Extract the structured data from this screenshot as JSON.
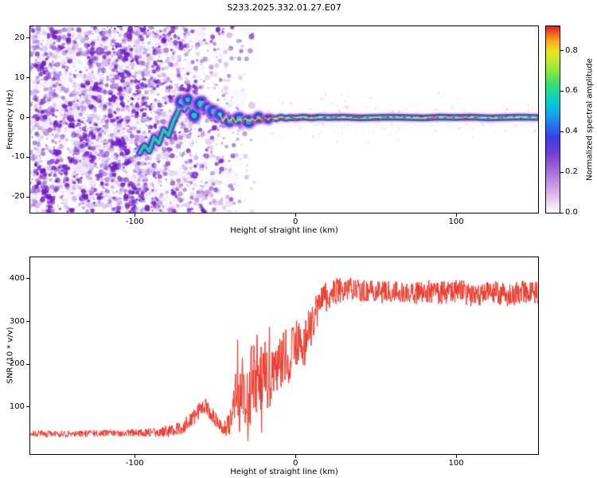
{
  "title": "S233.2025.332.01.27.E07",
  "chart_data": [
    {
      "type": "heatmap",
      "name": "spectrogram",
      "title": "S233.2025.332.01.27.E07",
      "xlabel": "Height of straight line (km)",
      "ylabel": "Frequency (Hz)",
      "xlim": [
        -165,
        151
      ],
      "ylim": [
        -24,
        23
      ],
      "xtick_values": [
        -100,
        0,
        100
      ],
      "xtick_labels": [
        "-100",
        "0",
        "100"
      ],
      "ytick_values": [
        20,
        10,
        0,
        -10,
        -20
      ],
      "ytick_labels": [
        "20",
        "10",
        "0",
        "-10",
        "-20"
      ],
      "colorbar": {
        "label": "Normalized spectral amplitude",
        "tick_values": [
          0,
          0.2,
          0.4,
          0.6,
          0.8
        ],
        "tick_labels": [
          "0.0",
          "0.2",
          "0.4",
          "0.6",
          "0.8"
        ],
        "vmin": 0,
        "vmax": 0.92,
        "stops": [
          [
            0.0,
            "#fdf8fd"
          ],
          [
            0.04,
            "#f3e4f7"
          ],
          [
            0.1,
            "#ddb6ec"
          ],
          [
            0.18,
            "#bd85e0"
          ],
          [
            0.26,
            "#9757d6"
          ],
          [
            0.33,
            "#6b3fd6"
          ],
          [
            0.4,
            "#3c3fe0"
          ],
          [
            0.46,
            "#2b6bec"
          ],
          [
            0.52,
            "#19a0e8"
          ],
          [
            0.58,
            "#06c6d6"
          ],
          [
            0.64,
            "#17d9a8"
          ],
          [
            0.7,
            "#3fe06b"
          ],
          [
            0.76,
            "#8ce83c"
          ],
          [
            0.82,
            "#c9ea28"
          ],
          [
            0.87,
            "#efdf1e"
          ],
          [
            0.92,
            "#f8ac1c"
          ],
          [
            0.96,
            "#f2661f"
          ],
          [
            1.0,
            "#dc1c24"
          ]
        ]
      },
      "noise": {
        "x_range": [
          -165,
          -25
        ],
        "fade_start": -95,
        "count": 3200,
        "seed": 20251
      },
      "signal_track": [
        [
          -97,
          -9
        ],
        [
          -94,
          -7
        ],
        [
          -91,
          -8.5
        ],
        [
          -88,
          -5
        ],
        [
          -85,
          -6.5
        ],
        [
          -82,
          -3
        ],
        [
          -79,
          -4.5
        ],
        [
          -76,
          -1
        ],
        [
          -73,
          1.5
        ],
        [
          -71,
          4
        ],
        [
          -69,
          2
        ],
        [
          -67,
          4.5
        ],
        [
          -65,
          2.5
        ],
        [
          -63,
          0.5
        ],
        [
          -61,
          2
        ],
        [
          -59,
          3.5
        ],
        [
          -57,
          1.5
        ],
        [
          -55,
          2.5
        ],
        [
          -53,
          0.5
        ],
        [
          -51,
          1.5
        ],
        [
          -49,
          -0.5
        ],
        [
          -47,
          0.8
        ],
        [
          -45,
          -0.8
        ],
        [
          -43,
          0.3
        ],
        [
          -41,
          -1
        ],
        [
          -39,
          0
        ],
        [
          -37,
          -1.2
        ],
        [
          -35,
          -0.3
        ],
        [
          -33,
          -1
        ],
        [
          -31,
          -0.2
        ],
        [
          -29,
          -1
        ],
        [
          -27,
          -0.3
        ],
        [
          -25,
          -0.8
        ],
        [
          -23,
          0
        ],
        [
          -21,
          -0.5
        ],
        [
          -19,
          -0.1
        ],
        [
          -17,
          -0.4
        ],
        [
          -15,
          0
        ],
        [
          -12,
          -0.3
        ],
        [
          -9,
          0.1
        ],
        [
          -6,
          -0.2
        ],
        [
          -3,
          0
        ],
        [
          0,
          -0.1
        ],
        [
          5,
          0.1
        ],
        [
          10,
          -0.1
        ],
        [
          15,
          0.1
        ],
        [
          20,
          0
        ],
        [
          30,
          0.1
        ],
        [
          40,
          -0.1
        ],
        [
          50,
          0
        ],
        [
          60,
          0.1
        ],
        [
          70,
          0
        ],
        [
          80,
          -0.1
        ],
        [
          90,
          0.1
        ],
        [
          100,
          0
        ],
        [
          110,
          0.1
        ],
        [
          120,
          -0.1
        ],
        [
          130,
          0
        ],
        [
          140,
          0.1
        ],
        [
          151,
          0
        ]
      ],
      "knots": [
        [
          -71,
          4,
          6
        ],
        [
          -67,
          4.5,
          5
        ],
        [
          -63,
          0.5,
          6
        ],
        [
          -59,
          3.5,
          7
        ],
        [
          -55,
          2.5,
          5
        ],
        [
          -51,
          1.5,
          6
        ],
        [
          -47,
          0.8,
          5
        ],
        [
          -41,
          -1,
          5
        ],
        [
          -35,
          -0.3,
          6
        ],
        [
          -29,
          -1,
          6
        ],
        [
          -23,
          0,
          5
        ],
        [
          -17,
          -0.4,
          4
        ]
      ],
      "red_zone": [
        -36,
        151
      ]
    },
    {
      "type": "line",
      "name": "snr",
      "xlabel": "Height of straight line (km)",
      "ylabel": "SNR (10 * v/v)",
      "xlim": [
        -165,
        151
      ],
      "ylim": [
        -10,
        450
      ],
      "xtick_values": [
        -100,
        0,
        100
      ],
      "xtick_labels": [
        "-100",
        "0",
        "100"
      ],
      "ytick_values": [
        100,
        200,
        300,
        400
      ],
      "ytick_labels": [
        "100",
        "200",
        "300",
        "400"
      ],
      "line_color": "#ee3224",
      "seed": 917,
      "base_points": [
        [
          -165,
          38
        ],
        [
          -140,
          37
        ],
        [
          -120,
          39
        ],
        [
          -100,
          40
        ],
        [
          -88,
          41
        ],
        [
          -78,
          44
        ],
        [
          -70,
          52
        ],
        [
          -64,
          72
        ],
        [
          -60,
          92
        ],
        [
          -56,
          100
        ],
        [
          -52,
          82
        ],
        [
          -48,
          62
        ],
        [
          -45,
          52
        ],
        [
          -42,
          50
        ],
        [
          -39,
          70
        ],
        [
          -37,
          130
        ],
        [
          -35,
          95
        ],
        [
          -33,
          165
        ],
        [
          -31,
          120
        ],
        [
          -29,
          95
        ],
        [
          -27,
          185
        ],
        [
          -25,
          150
        ],
        [
          -23,
          125
        ],
        [
          -21,
          175
        ],
        [
          -19,
          205
        ],
        [
          -17,
          160
        ],
        [
          -15,
          185
        ],
        [
          -13,
          210
        ],
        [
          -11,
          175
        ],
        [
          -9,
          205
        ],
        [
          -7,
          230
        ],
        [
          -5,
          195
        ],
        [
          -3,
          225
        ],
        [
          -1,
          240
        ],
        [
          2,
          255
        ],
        [
          5,
          245
        ],
        [
          8,
          275
        ],
        [
          11,
          300
        ],
        [
          14,
          325
        ],
        [
          17,
          345
        ],
        [
          20,
          360
        ],
        [
          24,
          370
        ],
        [
          28,
          372
        ],
        [
          34,
          376
        ],
        [
          42,
          372
        ],
        [
          52,
          368
        ],
        [
          62,
          372
        ],
        [
          72,
          362
        ],
        [
          82,
          370
        ],
        [
          92,
          366
        ],
        [
          102,
          372
        ],
        [
          112,
          356
        ],
        [
          122,
          368
        ],
        [
          132,
          362
        ],
        [
          142,
          370
        ],
        [
          151,
          366
        ]
      ],
      "noise_amp_points": [
        [
          -165,
          8
        ],
        [
          -110,
          8
        ],
        [
          -85,
          12
        ],
        [
          -65,
          20
        ],
        [
          -55,
          22
        ],
        [
          -48,
          14
        ],
        [
          -44,
          18
        ],
        [
          -40,
          45
        ],
        [
          -36,
          75
        ],
        [
          -30,
          85
        ],
        [
          -24,
          80
        ],
        [
          -18,
          75
        ],
        [
          -12,
          70
        ],
        [
          -6,
          62
        ],
        [
          0,
          58
        ],
        [
          6,
          52
        ],
        [
          12,
          46
        ],
        [
          18,
          40
        ],
        [
          24,
          32
        ],
        [
          32,
          27
        ],
        [
          60,
          26
        ],
        [
          100,
          28
        ],
        [
          151,
          27
        ]
      ],
      "spike_zone": [
        -42,
        30
      ],
      "spike_prob": 0.012
    }
  ]
}
